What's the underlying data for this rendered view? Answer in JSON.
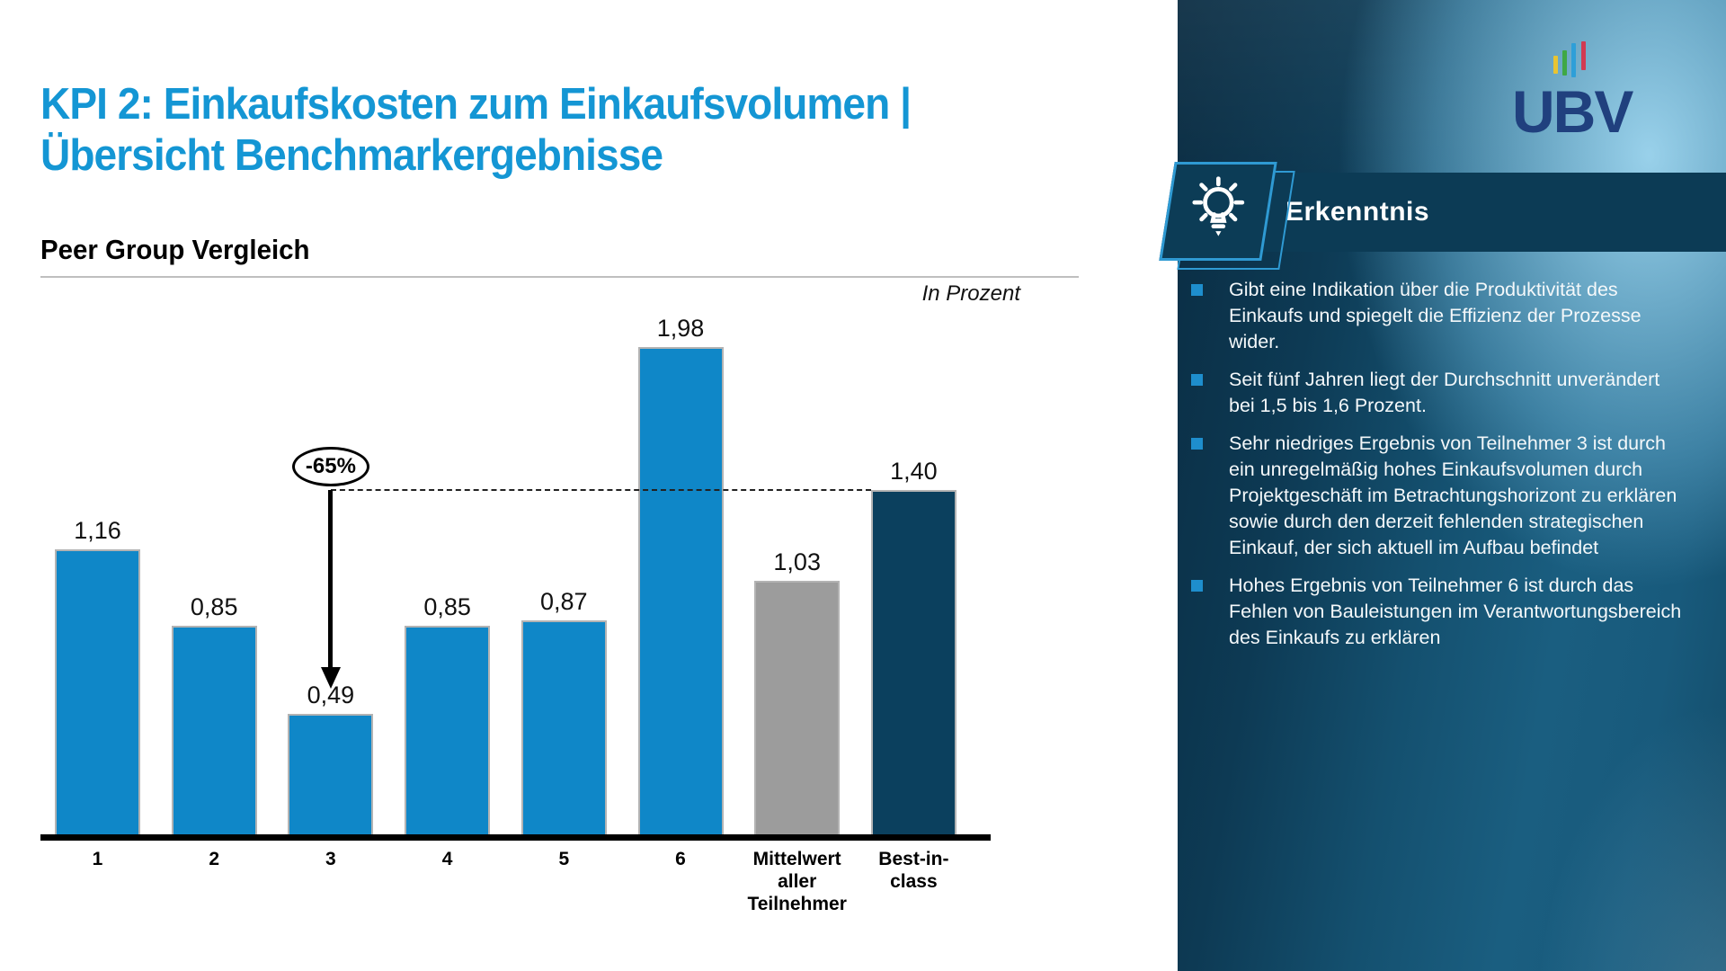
{
  "slide": {
    "title_line1": "KPI 2: Einkaufskosten zum Einkaufsvolumen |",
    "title_line2": "Übersicht Benchmarkergebnisse",
    "section_heading": "Peer Group Vergleich",
    "unit_label": "In Prozent"
  },
  "chart_data": {
    "type": "bar",
    "title": "Peer Group Vergleich",
    "unit_label": "In Prozent",
    "categories": [
      "1",
      "2",
      "3",
      "4",
      "5",
      "6",
      "Mittelwert aller Teilnehmer",
      "Best-in-class"
    ],
    "values": [
      1.16,
      0.85,
      0.49,
      0.85,
      0.87,
      1.98,
      1.03,
      1.4
    ],
    "value_labels": [
      "1,16",
      "0,85",
      "0,49",
      "0,85",
      "0,87",
      "1,98",
      "1,03",
      "1,40"
    ],
    "bar_colors": [
      "#0f87c8",
      "#0f87c8",
      "#0f87c8",
      "#0f87c8",
      "#0f87c8",
      "#0f87c8",
      "#9c9c9c",
      "#0b405e"
    ],
    "ylim": [
      0,
      2.15
    ],
    "grid": "off",
    "annotation": {
      "label": "-65%",
      "bar_index": 2,
      "reference_bar_index": 7
    }
  },
  "insight_panel": {
    "logo_text": "UBV",
    "logo_bar_colors": [
      "#e9c431",
      "#3fa845",
      "#2e9fd8",
      "#d23a52"
    ],
    "header": "Erkenntnis",
    "bullets": [
      "Gibt eine Indikation über die Produktivität des Einkaufs und spiegelt die Effizienz der Prozesse wider.",
      "Seit fünf Jahren liegt der Durchschnitt unverändert bei 1,5 bis 1,6 Prozent.",
      "Sehr niedriges Ergebnis von Teilnehmer 3 ist durch ein unregelmäßig hohes Einkaufs­volumen durch Projektgeschäft im Betrachtungshorizont zu erklären sowie durch den derzeit fehlenden strategischen Einkauf, der sich aktuell im Aufbau befindet",
      "Hohes Ergebnis von Teilnehmer 6 ist durch das Fehlen von Bauleistungen im Verantwortungsbereich des Einkaufs zu erklären"
    ]
  },
  "colors": {
    "title_blue": "#1496d4",
    "bar_blue": "#0f87c8",
    "bar_gray": "#9c9c9c",
    "bar_navy": "#0b405e",
    "panel_header_navy": "#0c3b55",
    "bullet_blue": "#1e8ecd",
    "logo_navy": "#20407e"
  }
}
